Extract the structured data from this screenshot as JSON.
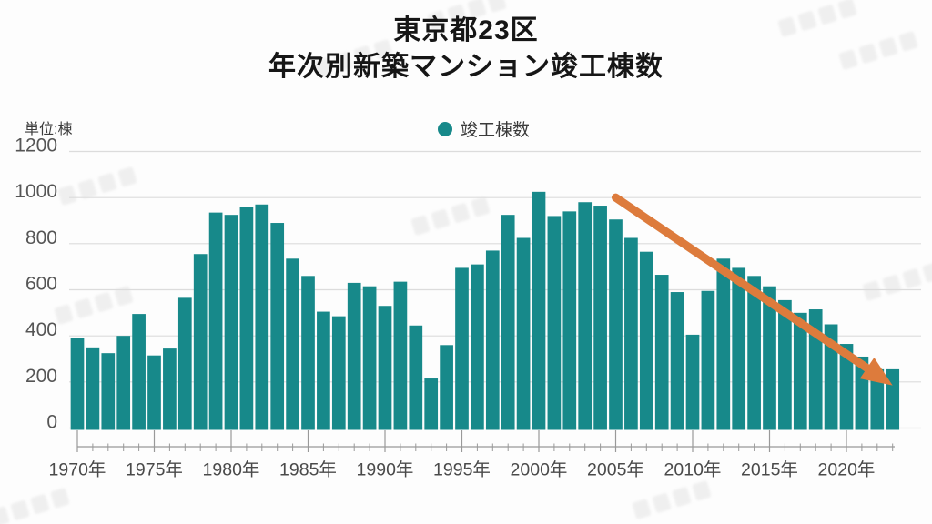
{
  "title": {
    "line1": "東京都23区",
    "line2": "年次別新築マンション竣工棟数"
  },
  "axis": {
    "unit_label": "単位:棟"
  },
  "legend": {
    "items": [
      {
        "label": "竣工棟数",
        "color": "#17898a"
      }
    ]
  },
  "colors": {
    "bar": "#17898a",
    "arrow": "#dd7b3c",
    "gridline": "#dcdcdc",
    "axis_line": "#999999",
    "tick_text": "#4a4a4a",
    "ytick_text": "#555555"
  },
  "chart_data": {
    "type": "bar",
    "series_name": "竣工棟数",
    "x": [
      1970,
      1971,
      1972,
      1973,
      1974,
      1975,
      1976,
      1977,
      1978,
      1979,
      1980,
      1981,
      1982,
      1983,
      1984,
      1985,
      1986,
      1987,
      1988,
      1989,
      1990,
      1991,
      1992,
      1993,
      1994,
      1995,
      1996,
      1997,
      1998,
      1999,
      2000,
      2001,
      2002,
      2003,
      2004,
      2005,
      2006,
      2007,
      2008,
      2009,
      2010,
      2011,
      2012,
      2013,
      2014,
      2015,
      2016,
      2017,
      2018,
      2019,
      2020,
      2021,
      2022,
      2023
    ],
    "values": [
      390,
      350,
      325,
      400,
      495,
      315,
      345,
      565,
      755,
      935,
      925,
      960,
      970,
      890,
      735,
      660,
      505,
      485,
      630,
      615,
      530,
      635,
      445,
      215,
      360,
      695,
      710,
      770,
      925,
      825,
      1025,
      920,
      940,
      980,
      965,
      905,
      825,
      765,
      665,
      590,
      405,
      595,
      735,
      695,
      660,
      615,
      555,
      500,
      515,
      450,
      365,
      310,
      255,
      255
    ],
    "ylim": [
      0,
      1200
    ],
    "yticks": [
      0,
      200,
      400,
      600,
      800,
      1000,
      1200
    ],
    "xtick_labels": [
      "1970年",
      "1975年",
      "1980年",
      "1985年",
      "1990年",
      "1995年",
      "2000年",
      "2005年",
      "2010年",
      "2015年",
      "2020年"
    ],
    "grid": "horizontal",
    "legend_position": "top-center",
    "annotation": {
      "type": "arrow",
      "color": "#dd7b3c",
      "start": {
        "year": 2005,
        "value": 1000
      },
      "end": {
        "year": 2023,
        "value": 185
      }
    }
  }
}
